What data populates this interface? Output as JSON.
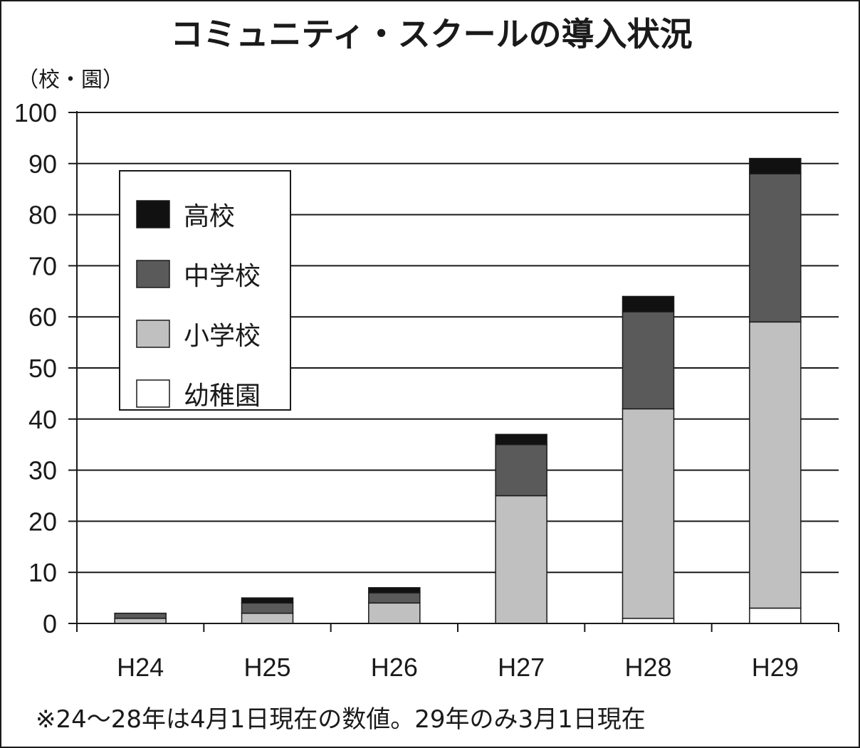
{
  "chart_data": {
    "type": "bar",
    "stacked": true,
    "title": "コミュニティ・スクールの導入状況",
    "unit_label": "（校・園）",
    "categories": [
      "H24",
      "H25",
      "H26",
      "H27",
      "H28",
      "H29"
    ],
    "ylim": [
      0,
      100
    ],
    "yticks": [
      "0",
      "10",
      "20",
      "30",
      "40",
      "50",
      "60",
      "70",
      "80",
      "90",
      "100"
    ],
    "grid": true,
    "legend_position": "top-left",
    "legend_order": [
      "高校",
      "中学校",
      "小学校",
      "幼稚園"
    ],
    "series": [
      {
        "name": "幼稚園",
        "color": "#ffffff",
        "values": [
          0,
          0,
          0,
          0,
          1,
          3
        ]
      },
      {
        "name": "小学校",
        "color": "#c0c0c0",
        "values": [
          1,
          2,
          4,
          25,
          41,
          56
        ]
      },
      {
        "name": "中学校",
        "color": "#5a5a5a",
        "values": [
          1,
          2,
          2,
          10,
          19,
          29
        ]
      },
      {
        "name": "高校",
        "color": "#111111",
        "values": [
          0,
          1,
          1,
          2,
          3,
          3
        ]
      }
    ],
    "note": "※24～28年は4月1日現在の数値。29年のみ3月1日現在"
  }
}
